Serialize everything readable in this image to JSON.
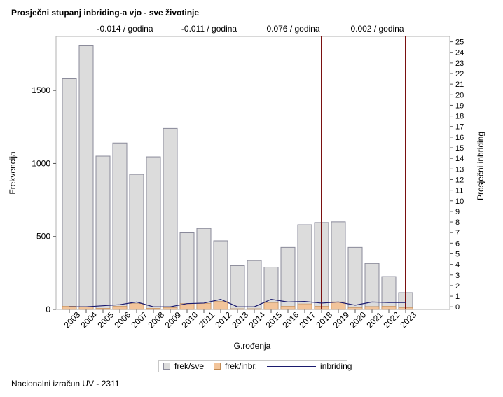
{
  "title": "Prosječni stupanj inbriding-a vjo - sve životinje",
  "footnote": "Nacionalni izračun UV - 2311",
  "chart_data": {
    "type": "bar",
    "title": "Prosječni stupanj inbriding-a vjo - sve životinje",
    "xlabel": "G.rođenja",
    "ylabel": "Frekvencija",
    "y2label": "Prosječni inbriding",
    "ylim": [
      0,
      1870
    ],
    "y2lim": [
      -0.25,
      25.5
    ],
    "yticks": [
      0,
      500,
      1000,
      1500
    ],
    "ytick_labels": [
      "0",
      "500",
      "1000",
      "1500"
    ],
    "y2ticks": [
      0,
      1,
      2,
      3,
      4,
      5,
      6,
      7,
      8,
      9,
      10,
      11,
      12,
      13,
      14,
      15,
      16,
      17,
      18,
      19,
      20,
      21,
      22,
      23,
      24,
      25
    ],
    "categories": [
      "2003",
      "2004",
      "2005",
      "2006",
      "2007",
      "2008",
      "2009",
      "2010",
      "2011",
      "2012",
      "2013",
      "2014",
      "2015",
      "2016",
      "2017",
      "2018",
      "2019",
      "2020",
      "2021",
      "2022",
      "2023"
    ],
    "series": [
      {
        "name": "frek/sve",
        "kind": "bar",
        "color": "#dcdcdc",
        "values": [
          1580,
          1810,
          1050,
          1140,
          925,
          1045,
          1240,
          525,
          555,
          470,
          300,
          335,
          290,
          425,
          580,
          595,
          600,
          425,
          315,
          225,
          115
        ]
      },
      {
        "name": "frek/inbr.",
        "kind": "bar",
        "color": "#f2c49a",
        "values": [
          22,
          20,
          8,
          22,
          40,
          8,
          12,
          40,
          42,
          55,
          5,
          5,
          45,
          22,
          38,
          22,
          52,
          12,
          20,
          22,
          12
        ]
      },
      {
        "name": "inbriding",
        "kind": "line",
        "axis": "y2",
        "color": "#1a1a6e",
        "values": [
          0,
          0,
          0.1,
          0.2,
          0.45,
          0,
          0,
          0.3,
          0.35,
          0.7,
          0,
          0,
          0.7,
          0.45,
          0.5,
          0.35,
          0.45,
          0.15,
          0.45,
          0.4,
          0.4
        ]
      }
    ],
    "trend_lines": [
      {
        "after": "2008",
        "label": "-0.014 / godina"
      },
      {
        "after": "2013",
        "label": "-0.011 / godina"
      },
      {
        "after": "2018",
        "label": "0.076 / godina"
      },
      {
        "after": "2023",
        "label": "0.002 / godina"
      }
    ],
    "legend": {
      "position": "bottom",
      "items": [
        {
          "label": "frek/sve",
          "symbol": "box",
          "color": "#dcdcdc"
        },
        {
          "label": "frek/inbr.",
          "symbol": "box",
          "color": "#f2c49a"
        },
        {
          "label": "inbriding",
          "symbol": "line",
          "color": "#1a1a6e"
        }
      ]
    },
    "colors": {
      "axis": "#555555",
      "trend": "#7a1010",
      "bar_border": "#8a8a9a",
      "inbr_border": "#c08850"
    }
  }
}
